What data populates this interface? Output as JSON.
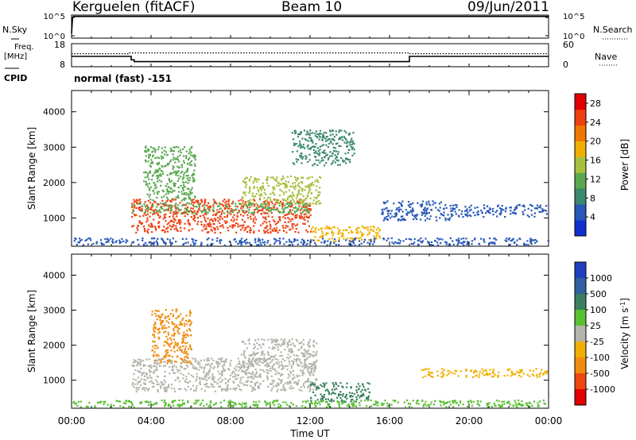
{
  "header": {
    "radar": "Kerguelen (fitACF)",
    "beam": "Beam 10",
    "date": "09/Jun/2011"
  },
  "side_labels": {
    "nsky": "N.Sky",
    "nsearch": "N.Search",
    "freq": "Freq.",
    "freq_unit": "[MHz]",
    "nave": "Nave",
    "cpid": "CPID",
    "cpid_value": "normal (fast) -151"
  },
  "colors": {
    "power_scale": [
      "#1030d0",
      "#2858b8",
      "#3c8870",
      "#5aa850",
      "#a8c040",
      "#f0b000",
      "#f07800",
      "#f04010",
      "#e00000"
    ],
    "velocity_scale": [
      "#2040c0",
      "#3060a0",
      "#3a8060",
      "#58c030",
      "#b4b4ac",
      "#f0b000",
      "#f08c10",
      "#f04810",
      "#e00000"
    ],
    "ground_scatter": "#a8a8a0",
    "background": "#ffffff"
  },
  "chart_data": [
    {
      "type": "line",
      "title": "",
      "ylabel": "N.Sky",
      "yticks": [
        "10^5",
        "10^0"
      ],
      "y2label": "N.Search",
      "y2ticks": [
        "10^5",
        "10^0"
      ],
      "series": [
        {
          "name": "N.Sky",
          "x": [
            0,
            0.05,
            0.1,
            4,
            8,
            12,
            16,
            20,
            24
          ],
          "values": [
            1,
            4.5,
            4.7,
            4.7,
            4.7,
            4.7,
            4.7,
            4.7,
            4.7
          ]
        }
      ]
    },
    {
      "type": "line",
      "ylabel": "Freq. [MHz]",
      "yticks": [
        "18",
        "8"
      ],
      "ylim": [
        8,
        18
      ],
      "y2label": "Nave",
      "y2ticks": [
        "60",
        "0"
      ],
      "y2lim": [
        0,
        60
      ],
      "series": [
        {
          "name": "Freq.",
          "x": [
            0,
            3.0,
            3.0,
            3.15,
            3.15,
            17.0,
            17.0,
            24
          ],
          "values": [
            12.5,
            12.5,
            11.0,
            11.0,
            10.2,
            10.2,
            12.5,
            12.5
          ]
        },
        {
          "name": "Nave",
          "x": [
            0,
            2.9,
            2.9,
            17.0,
            17.0,
            24
          ],
          "values": [
            34,
            34,
            36,
            36,
            34,
            34
          ]
        }
      ]
    },
    {
      "type": "heatmap",
      "title": "",
      "xlabel": "Time UT",
      "xticks": [
        "00:00",
        "04:00",
        "08:00",
        "12:00",
        "16:00",
        "20:00",
        "00:00"
      ],
      "xlim": [
        0,
        24
      ],
      "ylabel": "Slant Range [km]",
      "yticks": [
        1000,
        2000,
        3000,
        4000
      ],
      "ylim": [
        200,
        4600
      ],
      "colorbar": {
        "label": "Power [dB]",
        "ticks": [
          4,
          8,
          12,
          16,
          20,
          24,
          28
        ],
        "range": [
          0,
          30
        ]
      },
      "regions": [
        {
          "t": [
            3.0,
            12.0
          ],
          "range": [
            600,
            1550
          ],
          "level": 26
        },
        {
          "t": [
            3.0,
            12.0
          ],
          "range": [
            1150,
            1450
          ],
          "level": 10
        },
        {
          "t": [
            3.6,
            6.2
          ],
          "range": [
            1500,
            3050
          ],
          "level": 12
        },
        {
          "t": [
            8.5,
            12.5
          ],
          "range": [
            1400,
            2200
          ],
          "level": 14
        },
        {
          "t": [
            11.0,
            14.2
          ],
          "range": [
            2500,
            3500
          ],
          "level": 8
        },
        {
          "t": [
            12.0,
            15.5
          ],
          "range": [
            350,
            800
          ],
          "level": 18
        },
        {
          "t": [
            15.5,
            19.0
          ],
          "range": [
            950,
            1500
          ],
          "level": 6
        },
        {
          "t": [
            19.0,
            23.9
          ],
          "range": [
            1050,
            1400
          ],
          "level": 6
        },
        {
          "t": [
            0.0,
            24.0
          ],
          "range": [
            250,
            450
          ],
          "level": 6
        }
      ]
    },
    {
      "type": "heatmap",
      "xlabel": "Time UT",
      "xticks": [
        "00:00",
        "04:00",
        "08:00",
        "12:00",
        "16:00",
        "20:00",
        "00:00"
      ],
      "xlim": [
        0,
        24
      ],
      "ylabel": "Slant Range [km]",
      "yticks": [
        1000,
        2000,
        3000,
        4000
      ],
      "ylim": [
        200,
        4600
      ],
      "colorbar": {
        "label": "Velocity [m s^-1]",
        "ticks": [
          1000,
          500,
          100,
          25,
          -25,
          -100,
          -500,
          -1000
        ]
      },
      "regions": [
        {
          "t": [
            3.0,
            12.3
          ],
          "range": [
            700,
            1650
          ],
          "level": 0
        },
        {
          "t": [
            4.0,
            6.0
          ],
          "range": [
            1500,
            3050
          ],
          "level": -300
        },
        {
          "t": [
            8.5,
            12.3
          ],
          "range": [
            1400,
            2200
          ],
          "level": 0
        },
        {
          "t": [
            12.0,
            15.0
          ],
          "range": [
            400,
            950
          ],
          "level": 150
        },
        {
          "t": [
            17.5,
            23.9
          ],
          "range": [
            1100,
            1350
          ],
          "level": -100
        },
        {
          "t": [
            0.0,
            24.0
          ],
          "range": [
            250,
            450
          ],
          "level": 50
        }
      ]
    }
  ]
}
